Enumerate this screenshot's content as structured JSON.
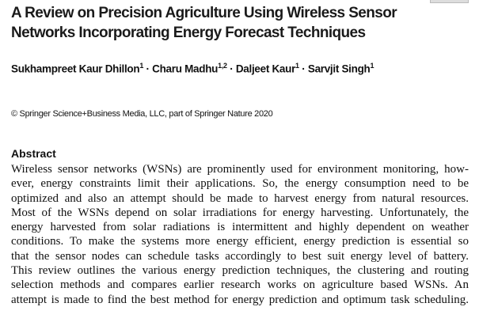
{
  "title_lines": [
    "A Review on Precision Agriculture Using Wireless Sensor",
    "Networks Incorporating Energy Forecast Techniques"
  ],
  "authors": [
    {
      "name": "Sukhampreet Kaur Dhillon",
      "aff": "1"
    },
    {
      "name": "Charu Madhu",
      "aff": "1,2"
    },
    {
      "name": "Daljeet Kaur",
      "aff": "1"
    },
    {
      "name": "Sarvjit Singh",
      "aff": "1"
    }
  ],
  "separator": "·",
  "copyright": "© Springer Science+Business Media, LLC, part of Springer Nature 2020",
  "abstract_heading": "Abstract",
  "abstract_lines": [
    "Wireless sensor networks (WSNs) are prominently used for environment monitoring, how-",
    "ever, energy constraints limit their applications. So, the energy consumption need to be",
    "optimized and also an attempt should be made to harvest energy from natural resources.",
    "Most of the WSNs depend on solar irradiations for energy harvesting. Unfortunately, the",
    "energy harvested from solar radiations is intermittent and highly dependent on weather",
    "conditions. To make the systems more energy efficient, energy prediction is essential so",
    "that the sensor nodes can schedule tasks accordingly to best suit energy level of battery.",
    "This review outlines the various energy prediction techniques, the clustering and routing",
    "selection methods and compares earlier research works on agriculture based WSNs. An",
    "attempt is made to find the best method for energy prediction and optimum task scheduling."
  ]
}
